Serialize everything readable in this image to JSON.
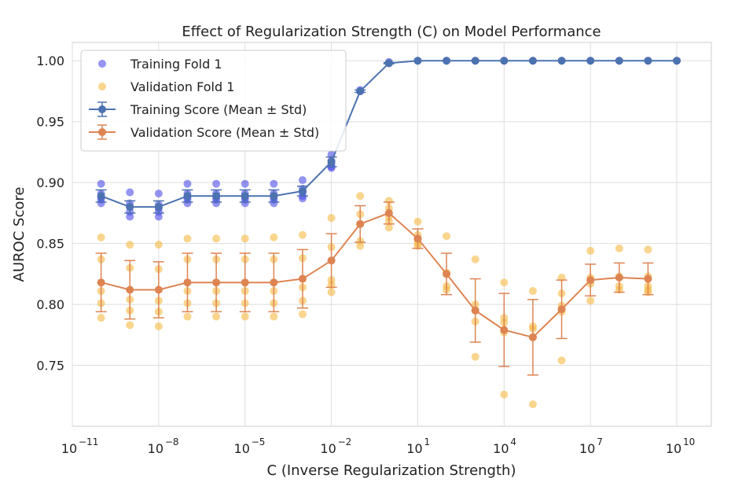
{
  "chart_data": {
    "type": "line",
    "title": "Effect of Regularization Strength (C) on Model Performance",
    "xlabel": "C (Inverse Regularization Strength)",
    "ylabel": "AUROC Score",
    "xscale": "log",
    "xlim_log10": [
      -11,
      11.2
    ],
    "ylim": [
      0.7,
      1.015
    ],
    "x_ticks": [
      {
        "base": "10",
        "exp": "−11",
        "log10": -11
      },
      {
        "base": "10",
        "exp": "−8",
        "log10": -8
      },
      {
        "base": "10",
        "exp": "−5",
        "log10": -5
      },
      {
        "base": "10",
        "exp": "−2",
        "log10": -2
      },
      {
        "base": "10",
        "exp": "1",
        "log10": 1
      },
      {
        "base": "10",
        "exp": "4",
        "log10": 4
      },
      {
        "base": "10",
        "exp": "7",
        "log10": 7
      },
      {
        "base": "10",
        "exp": "10",
        "log10": 10
      }
    ],
    "y_ticks": [
      "0.75",
      "0.80",
      "0.85",
      "0.90",
      "0.95",
      "1.00"
    ],
    "grid": true,
    "legend_position": "top-left",
    "x_log10": [
      -10,
      -9,
      -8,
      -7,
      -6,
      -5,
      -4,
      -3,
      -2,
      -1,
      0,
      1,
      2,
      3,
      4,
      5,
      6,
      7,
      8,
      9,
      10
    ],
    "series": [
      {
        "name": "Training Score (Mean ± Std)",
        "color": "#4c72b0",
        "mean": [
          0.889,
          0.88,
          0.88,
          0.889,
          0.889,
          0.889,
          0.889,
          0.893,
          0.917,
          0.975,
          0.998,
          1.0,
          1.0,
          1.0,
          1.0,
          1.0,
          1.0,
          1.0,
          1.0,
          1.0,
          1.0
        ],
        "std": [
          0.005,
          0.005,
          0.005,
          0.005,
          0.005,
          0.005,
          0.005,
          0.004,
          0.004,
          0.001,
          0.0005,
          0,
          0,
          0,
          0,
          0,
          0,
          0,
          0,
          0,
          0
        ]
      },
      {
        "name": "Validation Score (Mean ± Std)",
        "color": "#dd8452",
        "mean": [
          0.818,
          0.812,
          0.812,
          0.818,
          0.818,
          0.818,
          0.818,
          0.821,
          0.836,
          0.866,
          0.875,
          0.854,
          0.825,
          0.795,
          0.779,
          0.773,
          0.796,
          0.82,
          0.822,
          0.821
        ],
        "std": [
          0.024,
          0.024,
          0.023,
          0.024,
          0.024,
          0.024,
          0.024,
          0.024,
          0.022,
          0.015,
          0.009,
          0.008,
          0.017,
          0.026,
          0.03,
          0.031,
          0.024,
          0.013,
          0.012,
          0.013
        ]
      }
    ],
    "scatter": [
      {
        "name": "Training Fold 1",
        "color": "#4c4ce8",
        "points": [
          [
            -10,
            0.899
          ],
          [
            -10,
            0.891
          ],
          [
            -10,
            0.888
          ],
          [
            -10,
            0.886
          ],
          [
            -10,
            0.883
          ],
          [
            -9,
            0.892
          ],
          [
            -9,
            0.883
          ],
          [
            -9,
            0.88
          ],
          [
            -9,
            0.876
          ],
          [
            -9,
            0.872
          ],
          [
            -8,
            0.891
          ],
          [
            -8,
            0.882
          ],
          [
            -8,
            0.879
          ],
          [
            -8,
            0.876
          ],
          [
            -8,
            0.872
          ],
          [
            -7,
            0.899
          ],
          [
            -7,
            0.891
          ],
          [
            -7,
            0.888
          ],
          [
            -7,
            0.886
          ],
          [
            -7,
            0.883
          ],
          [
            -6,
            0.899
          ],
          [
            -6,
            0.891
          ],
          [
            -6,
            0.888
          ],
          [
            -6,
            0.886
          ],
          [
            -6,
            0.883
          ],
          [
            -5,
            0.899
          ],
          [
            -5,
            0.891
          ],
          [
            -5,
            0.888
          ],
          [
            -5,
            0.886
          ],
          [
            -5,
            0.883
          ],
          [
            -4,
            0.899
          ],
          [
            -4,
            0.891
          ],
          [
            -4,
            0.888
          ],
          [
            -4,
            0.886
          ],
          [
            -4,
            0.883
          ],
          [
            -3,
            0.902
          ],
          [
            -3,
            0.895
          ],
          [
            -3,
            0.892
          ],
          [
            -3,
            0.889
          ],
          [
            -3,
            0.887
          ],
          [
            -2,
            0.923
          ],
          [
            -2,
            0.918
          ],
          [
            -2,
            0.915
          ],
          [
            -2,
            0.913
          ],
          [
            -2,
            0.912
          ],
          [
            -1,
            0.976
          ],
          [
            -1,
            0.975
          ],
          [
            0,
            0.999
          ],
          [
            0,
            0.998
          ],
          [
            1,
            1.0
          ],
          [
            2,
            1.0
          ],
          [
            3,
            1.0
          ],
          [
            4,
            1.0
          ],
          [
            5,
            1.0
          ],
          [
            6,
            1.0
          ],
          [
            7,
            1.0
          ],
          [
            8,
            1.0
          ],
          [
            9,
            1.0
          ],
          [
            10,
            1.0
          ]
        ]
      },
      {
        "name": "Validation Fold 1",
        "color": "#f5b942",
        "points": [
          [
            -10,
            0.855
          ],
          [
            -10,
            0.837
          ],
          [
            -10,
            0.811
          ],
          [
            -10,
            0.801
          ],
          [
            -10,
            0.789
          ],
          [
            -9,
            0.849
          ],
          [
            -9,
            0.83
          ],
          [
            -9,
            0.804
          ],
          [
            -9,
            0.795
          ],
          [
            -9,
            0.783
          ],
          [
            -8,
            0.849
          ],
          [
            -8,
            0.829
          ],
          [
            -8,
            0.803
          ],
          [
            -8,
            0.794
          ],
          [
            -8,
            0.782
          ],
          [
            -7,
            0.854
          ],
          [
            -7,
            0.837
          ],
          [
            -7,
            0.811
          ],
          [
            -7,
            0.801
          ],
          [
            -7,
            0.79
          ],
          [
            -6,
            0.854
          ],
          [
            -6,
            0.837
          ],
          [
            -6,
            0.811
          ],
          [
            -6,
            0.801
          ],
          [
            -6,
            0.79
          ],
          [
            -5,
            0.854
          ],
          [
            -5,
            0.837
          ],
          [
            -5,
            0.811
          ],
          [
            -5,
            0.801
          ],
          [
            -5,
            0.79
          ],
          [
            -4,
            0.855
          ],
          [
            -4,
            0.837
          ],
          [
            -4,
            0.811
          ],
          [
            -4,
            0.801
          ],
          [
            -4,
            0.79
          ],
          [
            -3,
            0.857
          ],
          [
            -3,
            0.838
          ],
          [
            -3,
            0.814
          ],
          [
            -3,
            0.803
          ],
          [
            -3,
            0.792
          ],
          [
            -2,
            0.871
          ],
          [
            -2,
            0.847
          ],
          [
            -2,
            0.82
          ],
          [
            -2,
            0.816
          ],
          [
            -2,
            0.81
          ],
          [
            -1,
            0.889
          ],
          [
            -1,
            0.874
          ],
          [
            -1,
            0.866
          ],
          [
            -1,
            0.852
          ],
          [
            -1,
            0.848
          ],
          [
            0,
            0.885
          ],
          [
            0,
            0.879
          ],
          [
            0,
            0.872
          ],
          [
            0,
            0.868
          ],
          [
            0,
            0.863
          ],
          [
            1,
            0.868
          ],
          [
            1,
            0.857
          ],
          [
            1,
            0.853
          ],
          [
            1,
            0.85
          ],
          [
            1,
            0.848
          ],
          [
            2,
            0.856
          ],
          [
            2,
            0.826
          ],
          [
            2,
            0.815
          ],
          [
            2,
            0.812
          ],
          [
            3,
            0.837
          ],
          [
            3,
            0.8
          ],
          [
            3,
            0.795
          ],
          [
            3,
            0.786
          ],
          [
            3,
            0.757
          ],
          [
            4,
            0.818
          ],
          [
            4,
            0.789
          ],
          [
            4,
            0.785
          ],
          [
            4,
            0.777
          ],
          [
            4,
            0.726
          ],
          [
            5,
            0.811
          ],
          [
            5,
            0.782
          ],
          [
            5,
            0.78
          ],
          [
            5,
            0.773
          ],
          [
            5,
            0.718
          ],
          [
            6,
            0.822
          ],
          [
            6,
            0.809
          ],
          [
            6,
            0.799
          ],
          [
            6,
            0.794
          ],
          [
            6,
            0.754
          ],
          [
            7,
            0.844
          ],
          [
            7,
            0.822
          ],
          [
            7,
            0.817
          ],
          [
            7,
            0.803
          ],
          [
            8,
            0.846
          ],
          [
            8,
            0.823
          ],
          [
            8,
            0.815
          ],
          [
            8,
            0.812
          ],
          [
            9,
            0.845
          ],
          [
            9,
            0.823
          ],
          [
            9,
            0.815
          ],
          [
            9,
            0.812
          ],
          [
            9,
            0.81
          ]
        ]
      }
    ]
  }
}
